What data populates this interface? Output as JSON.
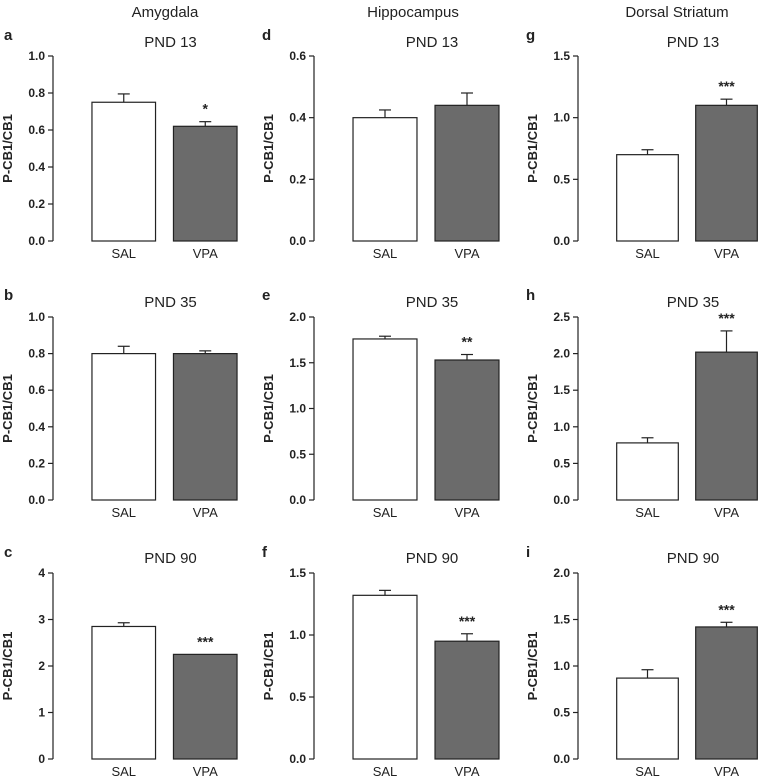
{
  "columns": [
    "Amygdala",
    "Hippocampus",
    "Dorsal Striatum"
  ],
  "colors": {
    "SAL": "#ffffff",
    "VPA": "#6b6b6b",
    "stroke": "#222222"
  },
  "chart_data": [
    {
      "type": "bar",
      "panel": "a",
      "title": "PND 13",
      "ylabel": "P-CB1/CB1",
      "categories": [
        "SAL",
        "VPA"
      ],
      "ylim": [
        0,
        1.0
      ],
      "ticks": [
        "0.0",
        "0.2",
        "0.4",
        "0.6",
        "0.8",
        "1.0"
      ],
      "values": [
        0.75,
        0.62
      ],
      "errors": [
        0.045,
        0.025
      ],
      "significance": [
        "",
        "*"
      ]
    },
    {
      "type": "bar",
      "panel": "d",
      "title": "PND 13",
      "ylabel": "P-CB1/CB1",
      "categories": [
        "SAL",
        "VPA"
      ],
      "ylim": [
        0,
        0.6
      ],
      "ticks": [
        "0.0",
        "0.2",
        "0.4",
        "0.6"
      ],
      "values": [
        0.4,
        0.44
      ],
      "errors": [
        0.025,
        0.04
      ],
      "significance": [
        "",
        ""
      ]
    },
    {
      "type": "bar",
      "panel": "g",
      "title": "PND 13",
      "ylabel": "P-CB1/CB1",
      "categories": [
        "SAL",
        "VPA"
      ],
      "ylim": [
        0,
        1.5
      ],
      "ticks": [
        "0.0",
        "0.5",
        "1.0",
        "1.5"
      ],
      "values": [
        0.7,
        1.1
      ],
      "errors": [
        0.04,
        0.05
      ],
      "significance": [
        "",
        "***"
      ]
    },
    {
      "type": "bar",
      "panel": "b",
      "title": "PND 35",
      "ylabel": "P-CB1/CB1",
      "categories": [
        "SAL",
        "VPA"
      ],
      "ylim": [
        0,
        1.0
      ],
      "ticks": [
        "0.0",
        "0.2",
        "0.4",
        "0.6",
        "0.8",
        "1.0"
      ],
      "values": [
        0.8,
        0.8
      ],
      "errors": [
        0.04,
        0.015
      ],
      "significance": [
        "",
        ""
      ]
    },
    {
      "type": "bar",
      "panel": "e",
      "title": "PND 35",
      "ylabel": "P-CB1/CB1",
      "categories": [
        "SAL",
        "VPA"
      ],
      "ylim": [
        0,
        2.0
      ],
      "ticks": [
        "0.0",
        "0.5",
        "1.0",
        "1.5",
        "2.0"
      ],
      "values": [
        1.76,
        1.53
      ],
      "errors": [
        0.03,
        0.06
      ],
      "significance": [
        "",
        "**"
      ]
    },
    {
      "type": "bar",
      "panel": "h",
      "title": "PND 35",
      "ylabel": "P-CB1/CB1",
      "categories": [
        "SAL",
        "VPA"
      ],
      "ylim": [
        0,
        2.5
      ],
      "ticks": [
        "0.0",
        "0.5",
        "1.0",
        "1.5",
        "2.0",
        "2.5"
      ],
      "values": [
        0.78,
        2.02
      ],
      "errors": [
        0.07,
        0.29
      ],
      "significance": [
        "",
        "***"
      ]
    },
    {
      "type": "bar",
      "panel": "c",
      "title": "PND 90",
      "ylabel": "P-CB1/CB1",
      "categories": [
        "SAL",
        "VPA"
      ],
      "ylim": [
        0,
        4
      ],
      "ticks": [
        "0",
        "1",
        "2",
        "3",
        "4"
      ],
      "values": [
        2.85,
        2.25
      ],
      "errors": [
        0.08,
        0.0
      ],
      "significance": [
        "",
        "***"
      ]
    },
    {
      "type": "bar",
      "panel": "f",
      "title": "PND 90",
      "ylabel": "P-CB1/CB1",
      "categories": [
        "SAL",
        "VPA"
      ],
      "ylim": [
        0,
        1.5
      ],
      "ticks": [
        "0.0",
        "0.5",
        "1.0",
        "1.5"
      ],
      "values": [
        1.32,
        0.95
      ],
      "errors": [
        0.04,
        0.06
      ],
      "significance": [
        "",
        "***"
      ]
    },
    {
      "type": "bar",
      "panel": "i",
      "title": "PND 90",
      "ylabel": "P-CB1/CB1",
      "categories": [
        "SAL",
        "VPA"
      ],
      "ylim": [
        0,
        2.0
      ],
      "ticks": [
        "0.0",
        "0.5",
        "1.0",
        "1.5",
        "2.0"
      ],
      "values": [
        0.87,
        1.42
      ],
      "errors": [
        0.09,
        0.05
      ],
      "significance": [
        "",
        "***"
      ]
    }
  ]
}
